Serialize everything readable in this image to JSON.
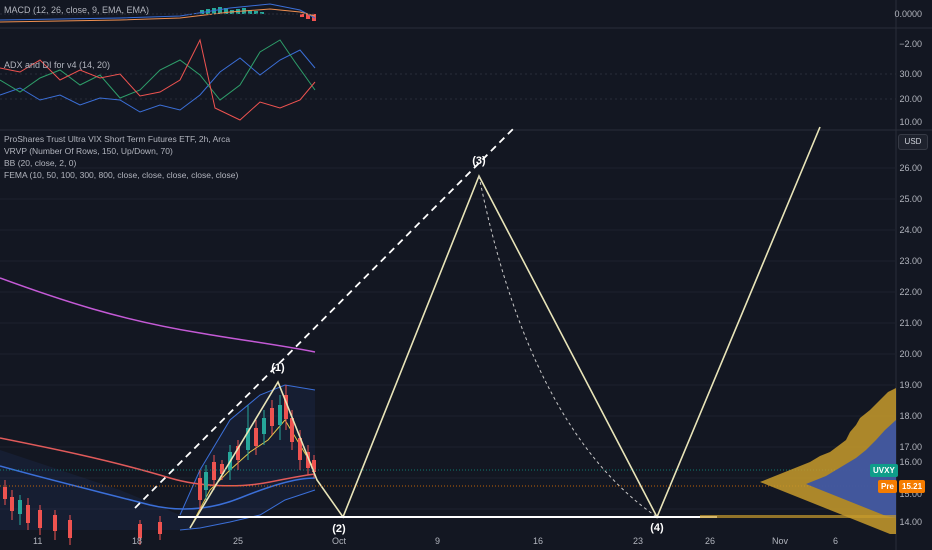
{
  "panes": {
    "macd": {
      "label": "MACD (12, 26, close, 9, EMA, EMA)",
      "axis_ticks": [
        "0.0000",
        "−2.00"
      ]
    },
    "adx": {
      "label": "ADX and DI for v4 (14, 20)",
      "axis_ticks": [
        "30.00",
        "20.00",
        "10.00"
      ]
    },
    "main": {
      "legend": [
        "ProShares Trust Ultra VIX Short Term Futures ETF, 2h, Arca",
        "VRVP (Number Of Rows, 150, Up/Down, 70)",
        "BB (20, close, 2, 0)",
        "FEMA (10, 50, 100, 300, 800, close, close, close, close, close)"
      ],
      "currency": "USD",
      "axis_ticks": [
        "26.00",
        "25.00",
        "24.00",
        "23.00",
        "22.00",
        "21.00",
        "20.00",
        "19.00",
        "18.00",
        "17.00",
        "16.00",
        "15.00",
        "14.00"
      ],
      "symbol_tag": "UVXY",
      "pre_tag": "Pre",
      "pre_price": "15.21"
    }
  },
  "x_axis": {
    "labels": [
      "11",
      "18",
      "25",
      "Oct",
      "9",
      "16",
      "23",
      "26",
      "Nov",
      "6"
    ]
  },
  "wave_labels": {
    "w1": "(1)",
    "w2": "(2)",
    "w3": "(3)",
    "w4": "(4)"
  },
  "colors": {
    "background": "#131722",
    "wave_line": "#e8e4b8",
    "trend_dashed": "#ffffff",
    "ema_purple": "#c45ad6",
    "ema_red": "#e05a5a",
    "ema_blue": "#3b6fd8",
    "ema_yellow": "#e6c84a",
    "candle_up": "#26a69a",
    "candle_down": "#ef5350",
    "vol_profile_up": "#2f4fb0",
    "vol_profile_down": "#c89b2c",
    "uvxy_tag": "#0f9d8a",
    "pre_tag": "#f57c00"
  }
}
